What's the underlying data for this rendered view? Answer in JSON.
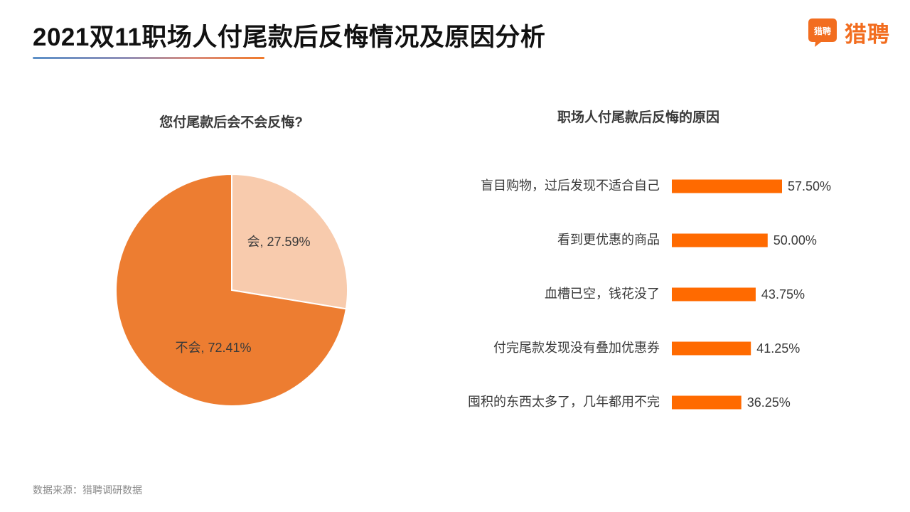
{
  "page": {
    "title": "2021双11职场人付尾款后反悔情况及原因分析",
    "logo_text": "猎聘",
    "logo_icon_text": "猎聘",
    "source": "数据来源：猎聘调研数据",
    "brand_color": "#f26d1f"
  },
  "chart_data": [
    {
      "type": "pie",
      "title": "您付尾款后会不会反悔?",
      "slices": [
        {
          "label": "会",
          "value": 27.59,
          "display": "会, 27.59%",
          "color": "#f8cbad"
        },
        {
          "label": "不会",
          "value": 72.41,
          "display": "不会, 72.41%",
          "color": "#ed7d31"
        }
      ]
    },
    {
      "type": "bar",
      "orientation": "horizontal",
      "title": "职场人付尾款后反悔的原因",
      "categories": [
        "盲目购物，过后发现不适合自己",
        "看到更优惠的商品",
        "血槽已空，钱花没了",
        "付完尾款发现没有叠加优惠券",
        "囤积的东西太多了，几年都用不完"
      ],
      "values": [
        57.5,
        50.0,
        43.75,
        41.25,
        36.25
      ],
      "labels": [
        "57.50%",
        "50.00%",
        "43.75%",
        "41.25%",
        "36.25%"
      ],
      "color": "#ff6a00",
      "grid": false
    }
  ]
}
